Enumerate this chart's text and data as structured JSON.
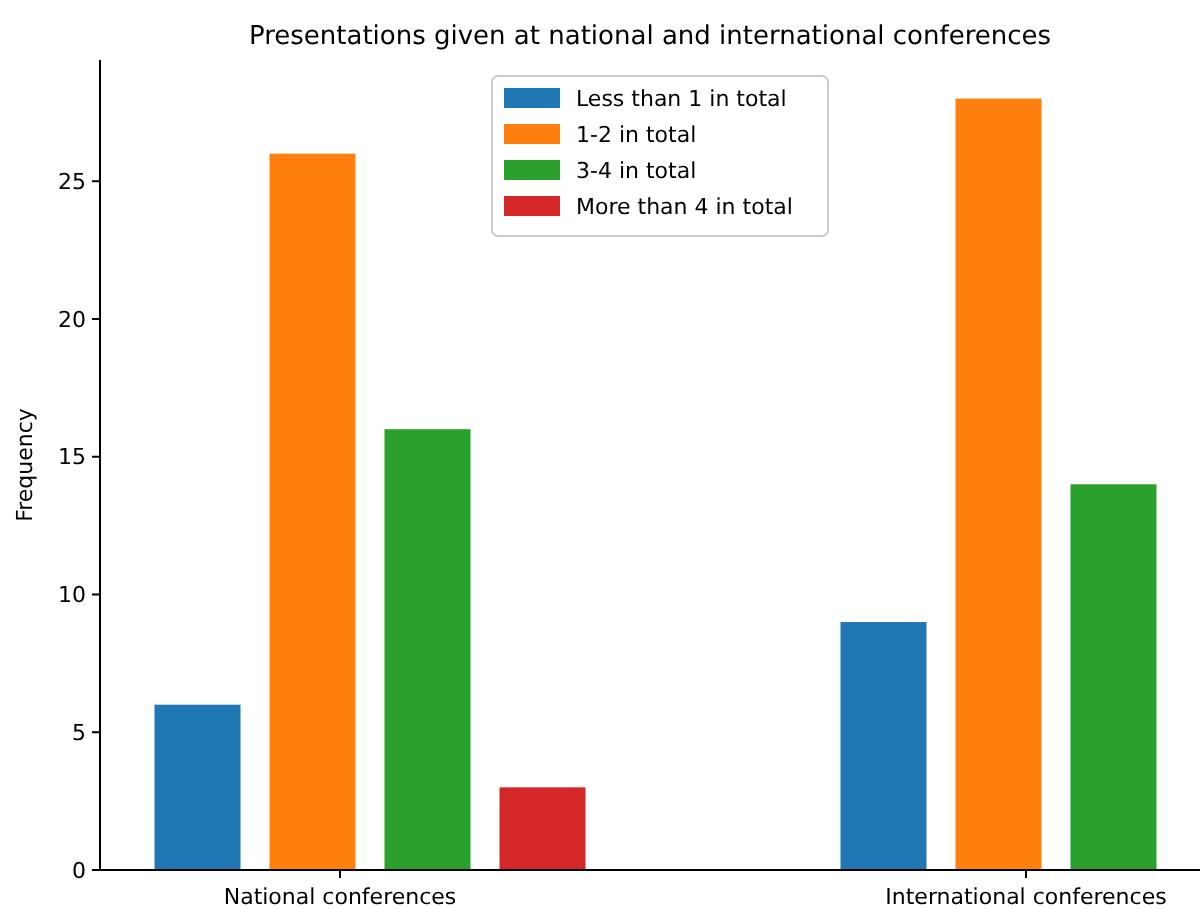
{
  "chart_data": {
    "type": "bar",
    "title": "Presentations given at national and international conferences",
    "ylabel": "Frequency",
    "categories": [
      "National conferences",
      "International conferences"
    ],
    "series": [
      {
        "name": "Less than 1 in total",
        "color": "#1f77b4",
        "values": [
          6,
          9
        ]
      },
      {
        "name": "1-2 in total",
        "color": "#ff7f0e",
        "values": [
          26,
          28
        ]
      },
      {
        "name": "3-4 in total",
        "color": "#2ca02c",
        "values": [
          16,
          14
        ]
      },
      {
        "name": "More than 4 in total",
        "color": "#d62728",
        "values": [
          3,
          0
        ]
      }
    ],
    "ylim": [
      0,
      29.4
    ],
    "yticks": [
      0,
      5,
      10,
      15,
      20,
      25
    ],
    "legend": "top",
    "grid": false
  }
}
